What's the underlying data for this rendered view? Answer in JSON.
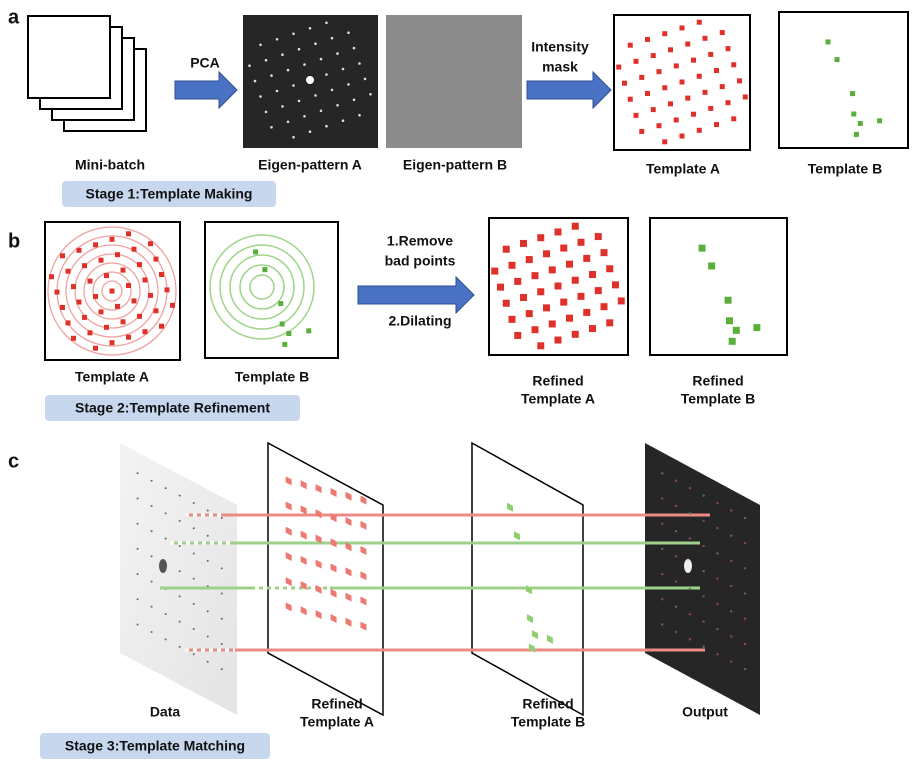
{
  "panel_a": {
    "label": "a",
    "arrow_1": [
      "PCA"
    ],
    "arrow_2": [
      "Intensity",
      "mask"
    ],
    "captions": [
      [
        "Mini-batch"
      ],
      [
        "Eigen-pattern A"
      ],
      [
        "Eigen-pattern B"
      ],
      [
        "Template A"
      ],
      [
        "Template B"
      ]
    ],
    "stage": "Stage 1:Template Making"
  },
  "panel_b": {
    "label": "b",
    "captions": [
      [
        "Template A"
      ],
      [
        "Template B"
      ],
      [
        "Refined",
        "Template A"
      ],
      [
        "Refined",
        "Template B"
      ]
    ],
    "step_1": [
      "1.Remove",
      "bad points"
    ],
    "step_2": [
      "2.Dilating"
    ],
    "stage": "Stage 2:Template Refinement"
  },
  "panel_c": {
    "label": "c",
    "captions": [
      [
        "Data"
      ],
      [
        "Refined",
        "Template A"
      ],
      [
        "Refined",
        "Template B"
      ],
      [
        "Output"
      ]
    ],
    "stage": "Stage 3:Template Matching"
  }
}
